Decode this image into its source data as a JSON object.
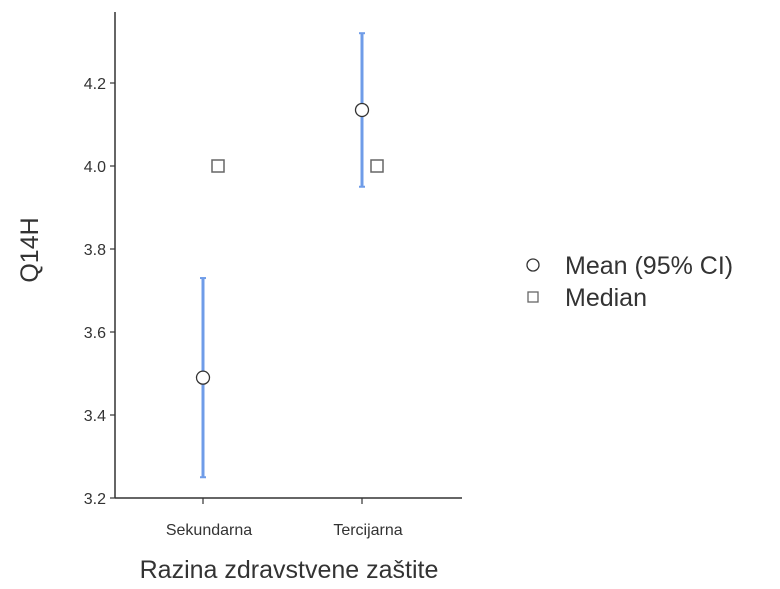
{
  "chart_data": {
    "type": "scatter",
    "xlabel": "Razina zdravstvene zaštite",
    "ylabel": "Q14H",
    "categories": [
      "Sekundarna",
      "Tercijarna"
    ],
    "ylim": [
      3.2,
      4.35
    ],
    "yticks": [
      3.2,
      3.4,
      3.6,
      3.8,
      4.0,
      4.2
    ],
    "series": [
      {
        "name": "Mean (95% CI)",
        "marker": "circle",
        "values": [
          3.49,
          4.135
        ],
        "ci_lower": [
          3.25,
          3.95
        ],
        "ci_upper": [
          3.73,
          4.32
        ]
      },
      {
        "name": "Median",
        "marker": "square",
        "values": [
          4.0,
          4.0
        ]
      }
    ],
    "legend_position": "right",
    "grid": false,
    "colors": {
      "ci_bar": "#6f9ce8",
      "axis": "#333333",
      "marker_stroke": "#333333",
      "marker_fill": "#ffffff",
      "median_stroke": "#666666"
    }
  }
}
